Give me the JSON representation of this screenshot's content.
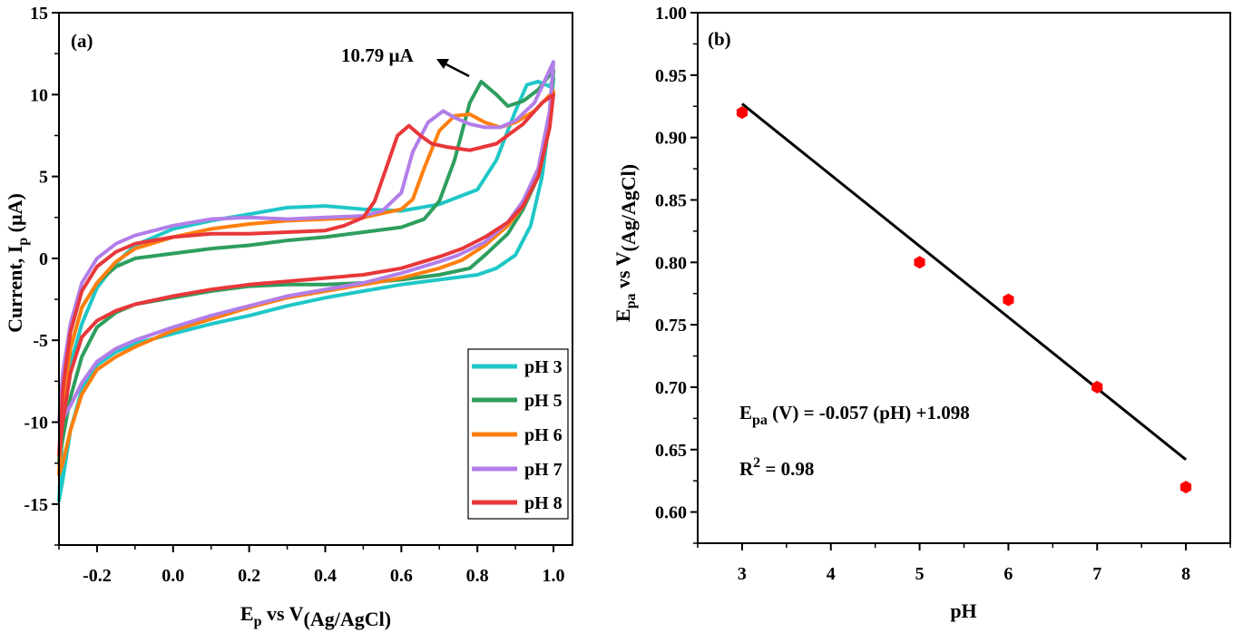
{
  "chart_data": [
    {
      "type": "line",
      "panel_label": "(a)",
      "xlabel": {
        "main": "E",
        "sub1": "p",
        "mid": " vs V",
        "sub2": "(Ag/AgCl)"
      },
      "ylabel": {
        "main": "Current, I",
        "sub": "p",
        "tail": " (µA)"
      },
      "xlim": [
        -0.3,
        1.05
      ],
      "ylim": [
        -17.5,
        15
      ],
      "xticks": [
        -0.2,
        0.0,
        0.2,
        0.4,
        0.6,
        0.8,
        1.0
      ],
      "xtick_labels": [
        "-0.2",
        "0.0",
        "0.2",
        "0.4",
        "0.6",
        "0.8",
        "1.0"
      ],
      "yticks": [
        -15,
        -10,
        -5,
        0,
        5,
        10,
        15
      ],
      "ytick_labels": [
        "-15",
        "-10",
        "-5",
        "0",
        "5",
        "10",
        "15"
      ],
      "annotation": {
        "text": "10.79 µA",
        "x": 0.81,
        "y": 10.79
      },
      "legend_position": "bottom-right",
      "series": [
        {
          "name": "pH 3",
          "color": "#1fc7c7",
          "points": [
            [
              -0.3,
              -14.8
            ],
            [
              -0.29,
              -10
            ],
            [
              -0.27,
              -6.5
            ],
            [
              -0.24,
              -4
            ],
            [
              -0.2,
              -1.8
            ],
            [
              -0.15,
              -0.3
            ],
            [
              -0.1,
              0.8
            ],
            [
              0.0,
              1.8
            ],
            [
              0.1,
              2.3
            ],
            [
              0.2,
              2.7
            ],
            [
              0.3,
              3.1
            ],
            [
              0.4,
              3.2
            ],
            [
              0.5,
              3.0
            ],
            [
              0.6,
              2.9
            ],
            [
              0.7,
              3.3
            ],
            [
              0.8,
              4.2
            ],
            [
              0.85,
              6.0
            ],
            [
              0.9,
              9.0
            ],
            [
              0.93,
              10.6
            ],
            [
              0.96,
              10.8
            ],
            [
              0.99,
              10.5
            ],
            [
              1.0,
              11.0
            ],
            [
              0.99,
              8.5
            ],
            [
              0.97,
              5.0
            ],
            [
              0.94,
              2.0
            ],
            [
              0.9,
              0.2
            ],
            [
              0.85,
              -0.6
            ],
            [
              0.8,
              -1.0
            ],
            [
              0.7,
              -1.3
            ],
            [
              0.6,
              -1.6
            ],
            [
              0.5,
              -2.0
            ],
            [
              0.4,
              -2.4
            ],
            [
              0.3,
              -2.9
            ],
            [
              0.2,
              -3.5
            ],
            [
              0.1,
              -4.0
            ],
            [
              0.0,
              -4.6
            ],
            [
              -0.1,
              -5.2
            ],
            [
              -0.15,
              -5.7
            ],
            [
              -0.2,
              -6.5
            ],
            [
              -0.24,
              -8.0
            ],
            [
              -0.27,
              -10.5
            ],
            [
              -0.29,
              -13.5
            ],
            [
              -0.3,
              -14.8
            ]
          ]
        },
        {
          "name": "pH 5",
          "color": "#2e9e5e",
          "points": [
            [
              -0.3,
              -12.5
            ],
            [
              -0.29,
              -9
            ],
            [
              -0.27,
              -5.5
            ],
            [
              -0.24,
              -3
            ],
            [
              -0.2,
              -1.5
            ],
            [
              -0.15,
              -0.5
            ],
            [
              -0.1,
              0.0
            ],
            [
              0.0,
              0.3
            ],
            [
              0.1,
              0.6
            ],
            [
              0.2,
              0.8
            ],
            [
              0.3,
              1.1
            ],
            [
              0.4,
              1.3
            ],
            [
              0.5,
              1.6
            ],
            [
              0.6,
              1.9
            ],
            [
              0.66,
              2.4
            ],
            [
              0.7,
              3.5
            ],
            [
              0.74,
              6.0
            ],
            [
              0.78,
              9.5
            ],
            [
              0.81,
              10.79
            ],
            [
              0.85,
              10.0
            ],
            [
              0.88,
              9.3
            ],
            [
              0.92,
              9.6
            ],
            [
              0.96,
              10.3
            ],
            [
              1.0,
              11.5
            ],
            [
              0.99,
              8.0
            ],
            [
              0.96,
              5.0
            ],
            [
              0.92,
              3.0
            ],
            [
              0.88,
              1.5
            ],
            [
              0.82,
              0.2
            ],
            [
              0.78,
              -0.6
            ],
            [
              0.7,
              -1.0
            ],
            [
              0.6,
              -1.3
            ],
            [
              0.5,
              -1.5
            ],
            [
              0.4,
              -1.6
            ],
            [
              0.3,
              -1.6
            ],
            [
              0.2,
              -1.7
            ],
            [
              0.1,
              -2.0
            ],
            [
              0.0,
              -2.4
            ],
            [
              -0.1,
              -2.8
            ],
            [
              -0.15,
              -3.3
            ],
            [
              -0.2,
              -4.2
            ],
            [
              -0.24,
              -6.0
            ],
            [
              -0.27,
              -8.5
            ],
            [
              -0.29,
              -11.0
            ],
            [
              -0.3,
              -12.5
            ]
          ]
        },
        {
          "name": "pH 6",
          "color": "#ff7f0e",
          "points": [
            [
              -0.3,
              -13.2
            ],
            [
              -0.29,
              -9
            ],
            [
              -0.27,
              -5.5
            ],
            [
              -0.24,
              -3
            ],
            [
              -0.2,
              -1.5
            ],
            [
              -0.15,
              -0.2
            ],
            [
              -0.1,
              0.6
            ],
            [
              0.0,
              1.3
            ],
            [
              0.1,
              1.8
            ],
            [
              0.2,
              2.1
            ],
            [
              0.3,
              2.3
            ],
            [
              0.4,
              2.4
            ],
            [
              0.5,
              2.5
            ],
            [
              0.6,
              3.0
            ],
            [
              0.63,
              3.6
            ],
            [
              0.66,
              5.5
            ],
            [
              0.7,
              7.8
            ],
            [
              0.74,
              8.7
            ],
            [
              0.78,
              8.8
            ],
            [
              0.82,
              8.3
            ],
            [
              0.86,
              8.0
            ],
            [
              0.9,
              8.3
            ],
            [
              0.95,
              9.0
            ],
            [
              1.0,
              10.2
            ],
            [
              0.99,
              8.0
            ],
            [
              0.96,
              5.0
            ],
            [
              0.92,
              3.2
            ],
            [
              0.88,
              2.0
            ],
            [
              0.82,
              0.8
            ],
            [
              0.76,
              -0.1
            ],
            [
              0.7,
              -0.6
            ],
            [
              0.6,
              -1.2
            ],
            [
              0.5,
              -1.6
            ],
            [
              0.4,
              -2.0
            ],
            [
              0.3,
              -2.4
            ],
            [
              0.2,
              -3.0
            ],
            [
              0.1,
              -3.7
            ],
            [
              0.0,
              -4.4
            ],
            [
              -0.1,
              -5.4
            ],
            [
              -0.15,
              -6.0
            ],
            [
              -0.2,
              -6.8
            ],
            [
              -0.24,
              -8.3
            ],
            [
              -0.27,
              -10.5
            ],
            [
              -0.29,
              -12.5
            ],
            [
              -0.3,
              -13.2
            ]
          ]
        },
        {
          "name": "pH 7",
          "color": "#b27ee8",
          "points": [
            [
              -0.3,
              -10.0
            ],
            [
              -0.29,
              -7
            ],
            [
              -0.27,
              -4
            ],
            [
              -0.24,
              -1.5
            ],
            [
              -0.2,
              0.0
            ],
            [
              -0.15,
              0.9
            ],
            [
              -0.1,
              1.4
            ],
            [
              0.0,
              2.0
            ],
            [
              0.1,
              2.4
            ],
            [
              0.2,
              2.5
            ],
            [
              0.3,
              2.4
            ],
            [
              0.4,
              2.5
            ],
            [
              0.5,
              2.6
            ],
            [
              0.55,
              2.9
            ],
            [
              0.6,
              4.0
            ],
            [
              0.63,
              6.5
            ],
            [
              0.67,
              8.3
            ],
            [
              0.71,
              9.0
            ],
            [
              0.74,
              8.6
            ],
            [
              0.78,
              8.2
            ],
            [
              0.82,
              8.0
            ],
            [
              0.86,
              8.0
            ],
            [
              0.9,
              8.4
            ],
            [
              0.95,
              9.5
            ],
            [
              1.0,
              12.0
            ],
            [
              0.99,
              9.0
            ],
            [
              0.96,
              5.5
            ],
            [
              0.92,
              3.5
            ],
            [
              0.88,
              2.2
            ],
            [
              0.82,
              1.0
            ],
            [
              0.75,
              0.2
            ],
            [
              0.7,
              -0.2
            ],
            [
              0.6,
              -0.9
            ],
            [
              0.5,
              -1.5
            ],
            [
              0.4,
              -1.9
            ],
            [
              0.3,
              -2.3
            ],
            [
              0.2,
              -2.9
            ],
            [
              0.1,
              -3.5
            ],
            [
              0.0,
              -4.2
            ],
            [
              -0.1,
              -5.0
            ],
            [
              -0.15,
              -5.5
            ],
            [
              -0.2,
              -6.3
            ],
            [
              -0.24,
              -7.6
            ],
            [
              -0.27,
              -9.0
            ],
            [
              -0.29,
              -9.8
            ],
            [
              -0.3,
              -10.0
            ]
          ]
        },
        {
          "name": "pH 8",
          "color": "#e8373a",
          "points": [
            [
              -0.3,
              -12.0
            ],
            [
              -0.29,
              -8
            ],
            [
              -0.27,
              -4.5
            ],
            [
              -0.24,
              -2
            ],
            [
              -0.2,
              -0.5
            ],
            [
              -0.15,
              0.4
            ],
            [
              -0.1,
              0.9
            ],
            [
              0.0,
              1.3
            ],
            [
              0.1,
              1.5
            ],
            [
              0.2,
              1.5
            ],
            [
              0.3,
              1.6
            ],
            [
              0.4,
              1.7
            ],
            [
              0.45,
              2.0
            ],
            [
              0.5,
              2.5
            ],
            [
              0.53,
              3.5
            ],
            [
              0.56,
              5.5
            ],
            [
              0.59,
              7.5
            ],
            [
              0.62,
              8.1
            ],
            [
              0.65,
              7.5
            ],
            [
              0.68,
              7.0
            ],
            [
              0.72,
              6.8
            ],
            [
              0.78,
              6.6
            ],
            [
              0.85,
              7.0
            ],
            [
              0.92,
              8.2
            ],
            [
              0.97,
              9.5
            ],
            [
              1.0,
              10.0
            ],
            [
              0.99,
              8.0
            ],
            [
              0.96,
              5.0
            ],
            [
              0.92,
              3.2
            ],
            [
              0.88,
              2.2
            ],
            [
              0.82,
              1.3
            ],
            [
              0.76,
              0.6
            ],
            [
              0.7,
              0.1
            ],
            [
              0.6,
              -0.6
            ],
            [
              0.5,
              -1.0
            ],
            [
              0.4,
              -1.2
            ],
            [
              0.3,
              -1.4
            ],
            [
              0.2,
              -1.6
            ],
            [
              0.1,
              -1.9
            ],
            [
              0.0,
              -2.3
            ],
            [
              -0.1,
              -2.8
            ],
            [
              -0.15,
              -3.2
            ],
            [
              -0.2,
              -3.8
            ],
            [
              -0.24,
              -4.8
            ],
            [
              -0.27,
              -7.0
            ],
            [
              -0.29,
              -10.0
            ],
            [
              -0.3,
              -12.0
            ]
          ]
        }
      ]
    },
    {
      "type": "scatter",
      "panel_label": "(b)",
      "xlabel": "pH",
      "ylabel": {
        "main": "E",
        "sub1": "pa",
        "mid": " vs V",
        "sub2": "(Ag/AgCl)"
      },
      "xlim": [
        2.5,
        8.5
      ],
      "ylim": [
        0.575,
        1.0
      ],
      "xticks": [
        3,
        4,
        5,
        6,
        7,
        8
      ],
      "xtick_labels": [
        "3",
        "4",
        "5",
        "6",
        "7",
        "8"
      ],
      "yticks": [
        0.6,
        0.65,
        0.7,
        0.75,
        0.8,
        0.85,
        0.9,
        0.95,
        1.0
      ],
      "ytick_labels": [
        "0.60",
        "0.65",
        "0.70",
        "0.75",
        "0.80",
        "0.85",
        "0.90",
        "0.95",
        "1.00"
      ],
      "points": {
        "x": [
          3,
          5,
          6,
          7,
          8
        ],
        "y": [
          0.92,
          0.8,
          0.77,
          0.7,
          0.62
        ],
        "color": "#ff0000"
      },
      "fit": {
        "slope": -0.057,
        "intercept": 1.098,
        "x_range": [
          3,
          8
        ],
        "color": "#000000"
      },
      "equation": {
        "prefix": "E",
        "sub": "pa",
        "rest": " (V) = -0.057 (pH) +1.098"
      },
      "r2": {
        "prefix": "R",
        "sup": "2",
        "rest": " = 0.98"
      }
    }
  ]
}
